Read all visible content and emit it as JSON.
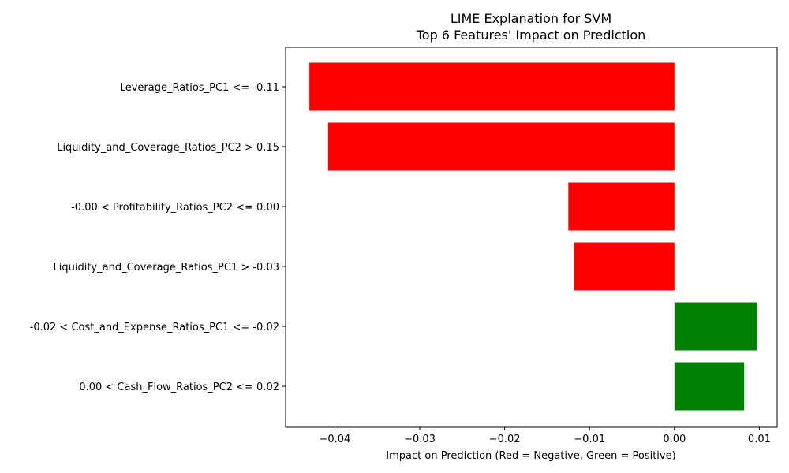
{
  "chart_data": {
    "type": "bar",
    "orientation": "horizontal",
    "title_line1": "LIME Explanation for SVM",
    "title_line2": "Top 6 Features' Impact on Prediction",
    "xlabel": "Impact on Prediction (Red = Negative, Green = Positive)",
    "ylabel": "",
    "xlim": [
      -0.0458,
      0.0121
    ],
    "xticks": [
      -0.04,
      -0.03,
      -0.02,
      -0.01,
      0.0,
      0.01
    ],
    "xtick_labels": [
      "−0.04",
      "−0.03",
      "−0.02",
      "−0.01",
      "0.00",
      "0.01"
    ],
    "grid": false,
    "categories": [
      "Leverage_Ratios_PC1 <= -0.11",
      "Liquidity_and_Coverage_Ratios_PC2 > 0.15",
      "-0.00 < Profitability_Ratios_PC2 <= 0.00",
      "Liquidity_and_Coverage_Ratios_PC1 > -0.03",
      "-0.02 < Cost_and_Expense_Ratios_PC1 <= -0.02",
      "0.00 < Cash_Flow_Ratios_PC2 <= 0.02"
    ],
    "values": [
      -0.043,
      -0.0408,
      -0.0125,
      -0.0118,
      0.0097,
      0.0082
    ],
    "colors": {
      "negative": "#ff0000",
      "positive": "#008000"
    }
  }
}
